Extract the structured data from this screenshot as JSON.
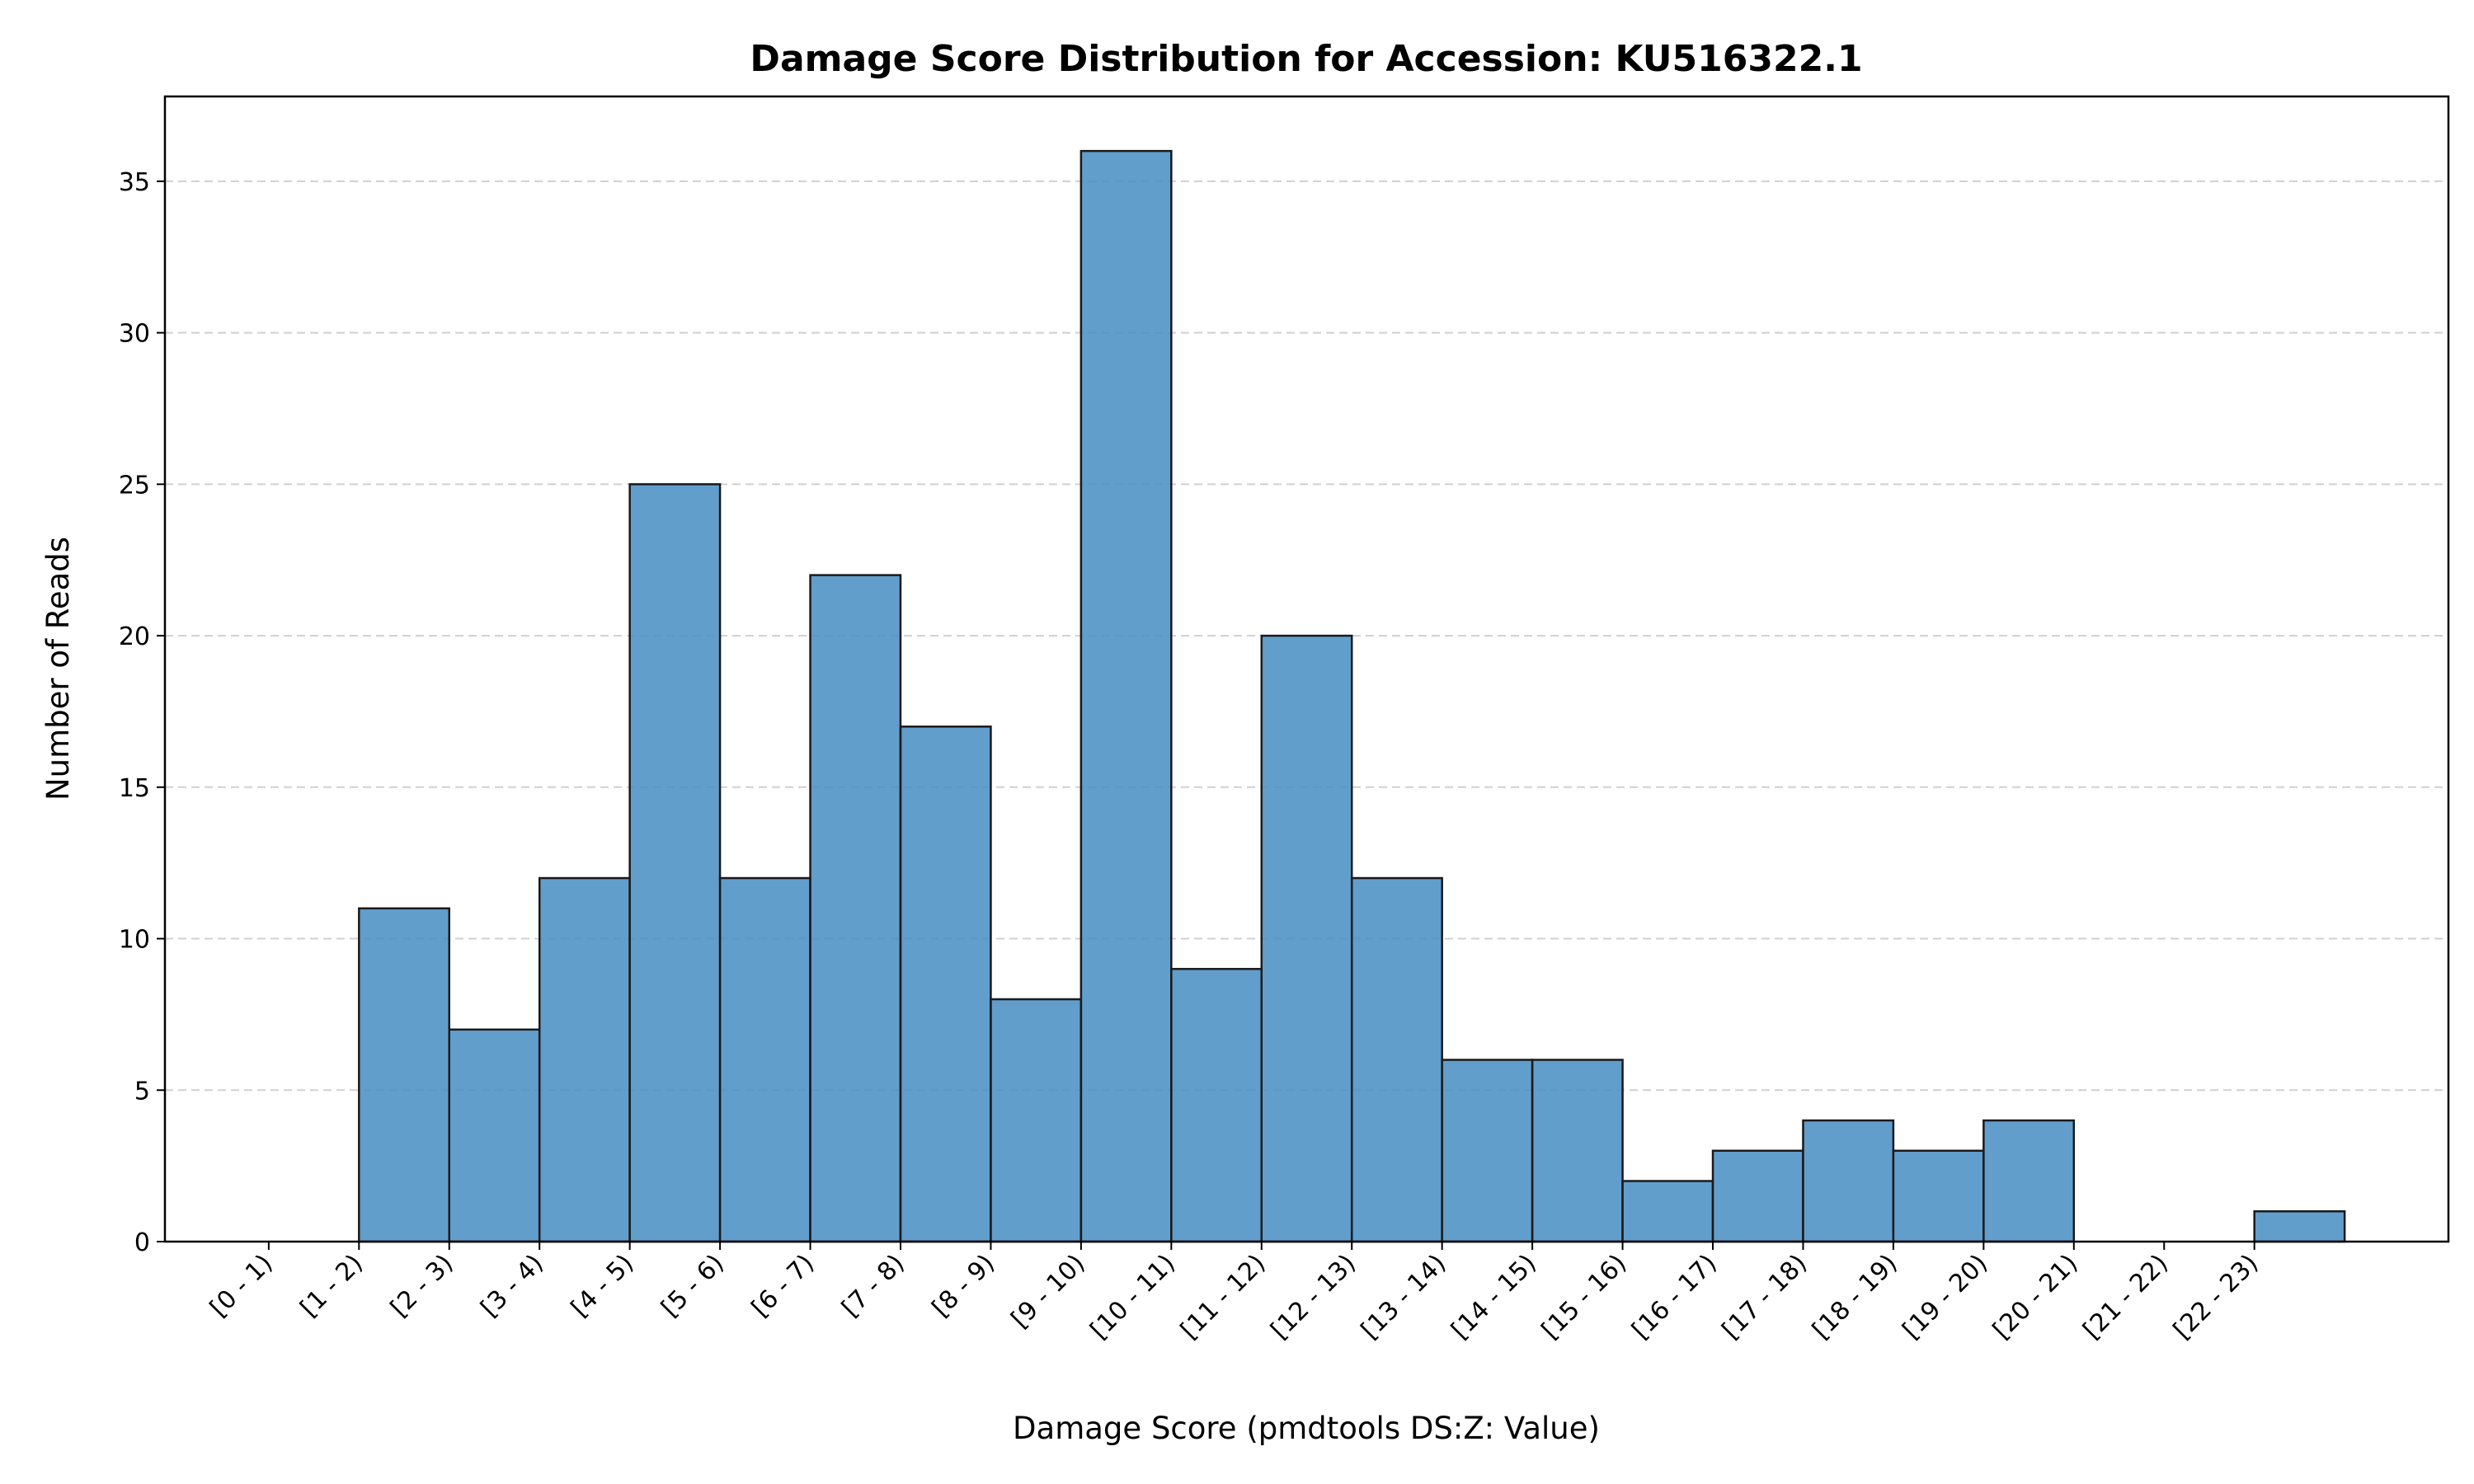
{
  "chart_data": {
    "type": "bar",
    "title": "Damage Score Distribution for Accession: KU516322.1",
    "xlabel": "Damage Score (pmdtools DS:Z: Value)",
    "ylabel": "Number of Reads",
    "categories": [
      "[0 - 1)",
      "[1 - 2)",
      "[2 - 3)",
      "[3 - 4)",
      "[4 - 5)",
      "[5 - 6)",
      "[6 - 7)",
      "[7 - 8)",
      "[8 - 9)",
      "[9 - 10)",
      "[10 - 11)",
      "[11 - 12)",
      "[12 - 13)",
      "[13 - 14)",
      "[14 - 15)",
      "[15 - 16)",
      "[16 - 17)",
      "[17 - 18)",
      "[18 - 19)",
      "[19 - 20)",
      "[20 - 21)",
      "[21 - 22)",
      "[22 - 23)"
    ],
    "values": [
      0,
      11,
      7,
      12,
      25,
      12,
      22,
      17,
      8,
      36,
      9,
      20,
      12,
      6,
      6,
      2,
      3,
      4,
      3,
      4,
      0,
      0,
      1
    ],
    "bin_edges_start": 0,
    "bin_width": 1,
    "xlim": [
      -1.15,
      24.15
    ],
    "ylim": [
      0,
      37.8
    ],
    "yticks": [
      0,
      5,
      10,
      15,
      20,
      25,
      30,
      35
    ],
    "grid": "y-dashed",
    "bar_color": "#4a90c4",
    "bar_edge_color": "#1a1a1a"
  }
}
